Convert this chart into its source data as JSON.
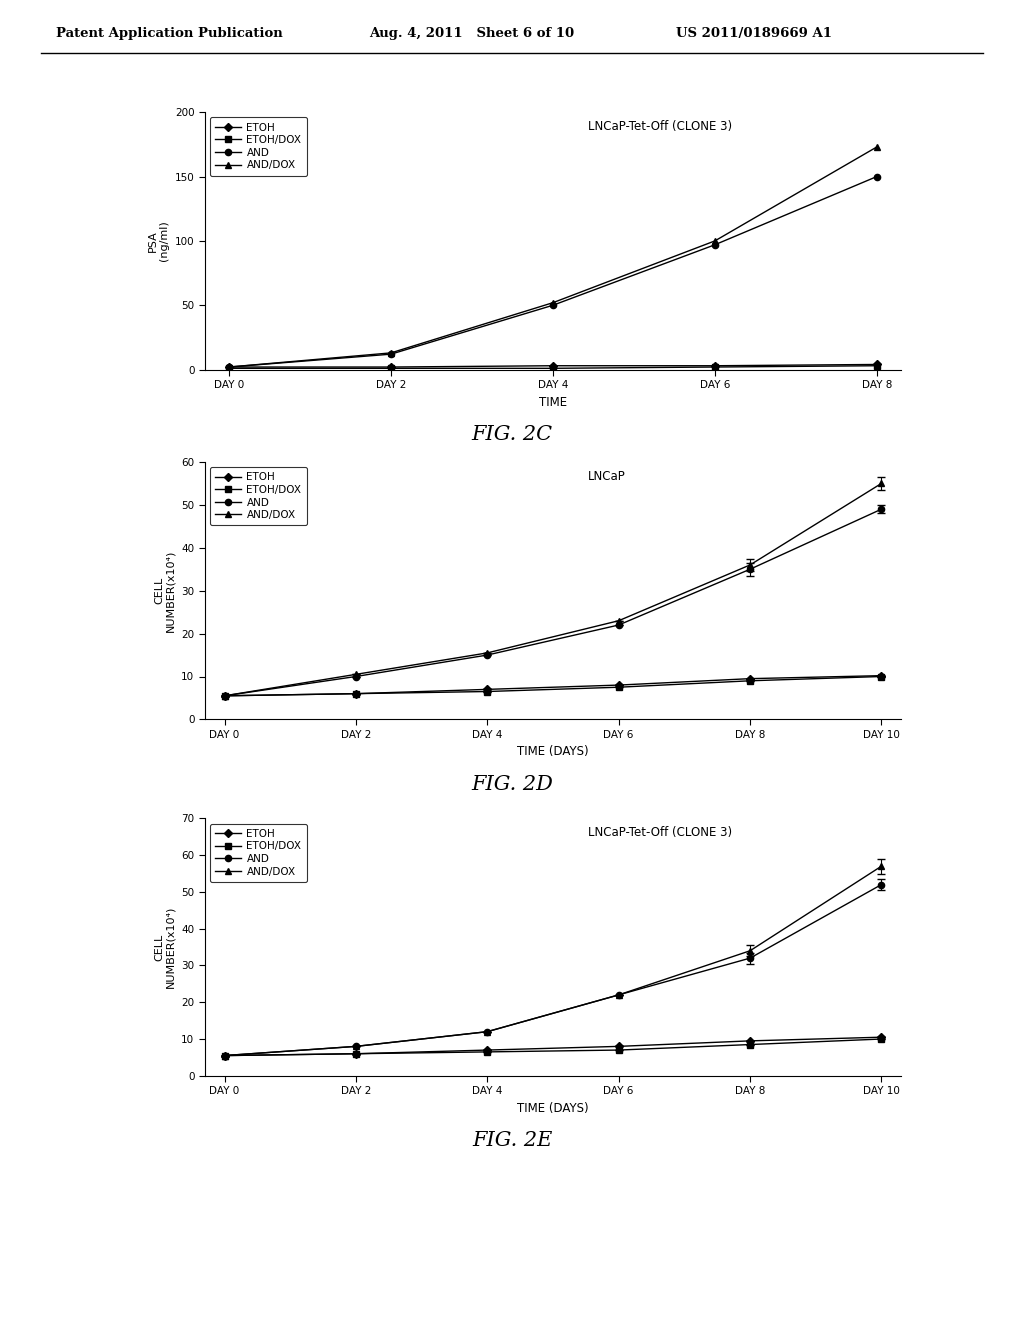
{
  "header_left": "Patent Application Publication",
  "header_center": "Aug. 4, 2011   Sheet 6 of 10",
  "header_right": "US 2011/0189669 A1",
  "fig2c": {
    "title": "LNCaP-Tet-Off (CLONE 3)",
    "xlabel": "TIME",
    "ylabel": "PSA\n(ng/ml)",
    "ylim": [
      0,
      200
    ],
    "yticks": [
      0,
      50,
      100,
      150,
      200
    ],
    "xtick_labels": [
      "DAY 0",
      "DAY 2",
      "DAY 4",
      "DAY 6",
      "DAY 8"
    ],
    "x": [
      0,
      2,
      4,
      6,
      8
    ],
    "series": {
      "ETOH": [
        2,
        2,
        3,
        3,
        4
      ],
      "ETOH/DOX": [
        1,
        1,
        1,
        2,
        3
      ],
      "AND": [
        2,
        12,
        50,
        97,
        150
      ],
      "AND/DOX": [
        2,
        13,
        52,
        100,
        173
      ]
    },
    "fig_label": "FIG. 2C"
  },
  "fig2d": {
    "title": "LNCaP",
    "xlabel": "TIME (DAYS)",
    "ylabel": "CELL\nNUMBER(x10⁴)",
    "ylim": [
      0,
      60
    ],
    "yticks": [
      0,
      10,
      20,
      30,
      40,
      50,
      60
    ],
    "xtick_labels": [
      "DAY 0",
      "DAY 2",
      "DAY 4",
      "DAY 6",
      "DAY 8",
      "DAY 10"
    ],
    "x": [
      0,
      2,
      4,
      6,
      8,
      10
    ],
    "series": {
      "ETOH": [
        5.5,
        6,
        7,
        8,
        9.5,
        10.2
      ],
      "ETOH/DOX": [
        5.5,
        6,
        6.5,
        7.5,
        9,
        10
      ],
      "AND": [
        5.5,
        10,
        15,
        22,
        35,
        49
      ],
      "AND/DOX": [
        5.5,
        10.5,
        15.5,
        23,
        36,
        55
      ]
    },
    "errorbars": {
      "ETOH": [
        0,
        0,
        0,
        0,
        0,
        0
      ],
      "ETOH/DOX": [
        0,
        0,
        0,
        0,
        0,
        0
      ],
      "AND": [
        0,
        0,
        0,
        0,
        1.5,
        1.0
      ],
      "AND/DOX": [
        0,
        0,
        0,
        0,
        1.5,
        1.5
      ]
    },
    "fig_label": "FIG. 2D"
  },
  "fig2e": {
    "title": "LNCaP-Tet-Off (CLONE 3)",
    "xlabel": "TIME (DAYS)",
    "ylabel": "CELL\nNUMBER(x10⁴)",
    "ylim": [
      0,
      70
    ],
    "yticks": [
      0,
      10,
      20,
      30,
      40,
      50,
      60,
      70
    ],
    "xtick_labels": [
      "DAY 0",
      "DAY 2",
      "DAY 4",
      "DAY 6",
      "DAY 8",
      "DAY 10"
    ],
    "x": [
      0,
      2,
      4,
      6,
      8,
      10
    ],
    "series": {
      "ETOH": [
        5.5,
        6,
        7,
        8,
        9.5,
        10.5
      ],
      "ETOH/DOX": [
        5.5,
        6,
        6.5,
        7,
        8.5,
        10
      ],
      "AND": [
        5.5,
        8,
        12,
        22,
        32,
        52
      ],
      "AND/DOX": [
        5.5,
        8,
        12,
        22,
        34,
        57
      ]
    },
    "errorbars": {
      "ETOH": [
        0,
        0,
        0,
        0,
        0,
        0
      ],
      "ETOH/DOX": [
        0,
        0,
        0,
        0,
        0,
        0
      ],
      "AND": [
        0,
        0,
        0,
        0,
        1.5,
        1.5
      ],
      "AND/DOX": [
        0,
        0,
        0,
        0,
        1.5,
        2.0
      ]
    },
    "fig_label": "FIG. 2E"
  },
  "legend_labels": [
    "ETOH",
    "ETOH/DOX",
    "AND",
    "AND/DOX"
  ],
  "markers": [
    "D",
    "s",
    "o",
    "^"
  ],
  "line_color": "#000000",
  "background_color": "#ffffff"
}
